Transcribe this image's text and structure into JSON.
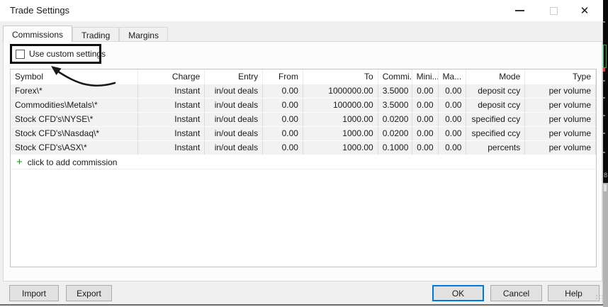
{
  "window": {
    "title": "Trade Settings",
    "close_glyph": "✕"
  },
  "tabs": [
    {
      "label": "Commissions",
      "active": true
    },
    {
      "label": "Trading",
      "active": false
    },
    {
      "label": "Margins",
      "active": false
    }
  ],
  "settings": {
    "use_custom_label": "Use custom settings",
    "use_custom_checked": false
  },
  "table": {
    "columns": [
      {
        "label": "Symbol",
        "align": "left"
      },
      {
        "label": "Charge",
        "align": "right"
      },
      {
        "label": "Entry",
        "align": "right"
      },
      {
        "label": "From",
        "align": "right"
      },
      {
        "label": "To",
        "align": "right"
      },
      {
        "label": "Commi...",
        "align": "left"
      },
      {
        "label": "Mini...",
        "align": "left"
      },
      {
        "label": "Ma...",
        "align": "left"
      },
      {
        "label": "Mode",
        "align": "right"
      },
      {
        "label": "Type",
        "align": "right"
      }
    ],
    "rows": [
      [
        "Forex\\*",
        "Instant",
        "in/out deals",
        "0.00",
        "1000000.00",
        "3.5000",
        "0.00",
        "0.00",
        "deposit ccy",
        "per volume"
      ],
      [
        "Commodities\\Metals\\*",
        "Instant",
        "in/out deals",
        "0.00",
        "100000.00",
        "3.5000",
        "0.00",
        "0.00",
        "deposit ccy",
        "per volume"
      ],
      [
        "Stock CFD's\\NYSE\\*",
        "Instant",
        "in/out deals",
        "0.00",
        "1000.00",
        "0.0200",
        "0.00",
        "0.00",
        "specified ccy",
        "per volume"
      ],
      [
        "Stock CFD's\\Nasdaq\\*",
        "Instant",
        "in/out deals",
        "0.00",
        "1000.00",
        "0.0200",
        "0.00",
        "0.00",
        "specified ccy",
        "per volume"
      ],
      [
        "Stock CFD's\\ASX\\*",
        "Instant",
        "in/out deals",
        "0.00",
        "1000.00",
        "0.1000",
        "0.00",
        "0.00",
        "percents",
        "per volume"
      ]
    ],
    "add_row": {
      "plus_glyph": "+",
      "label": "click to add commission"
    }
  },
  "footer": {
    "import_label": "Import",
    "export_label": "Export",
    "ok_label": "OK",
    "cancel_label": "Cancel",
    "help_label": "Help"
  },
  "edge_window": {
    "price_text": "8"
  },
  "colors": {
    "accent_blue": "#0078d7",
    "add_green": "#119911",
    "candle_green": "#00c24a",
    "candle_red": "#e03535",
    "row_gray": "#f2f2f2",
    "dialog_gray": "#f0f0f0"
  }
}
